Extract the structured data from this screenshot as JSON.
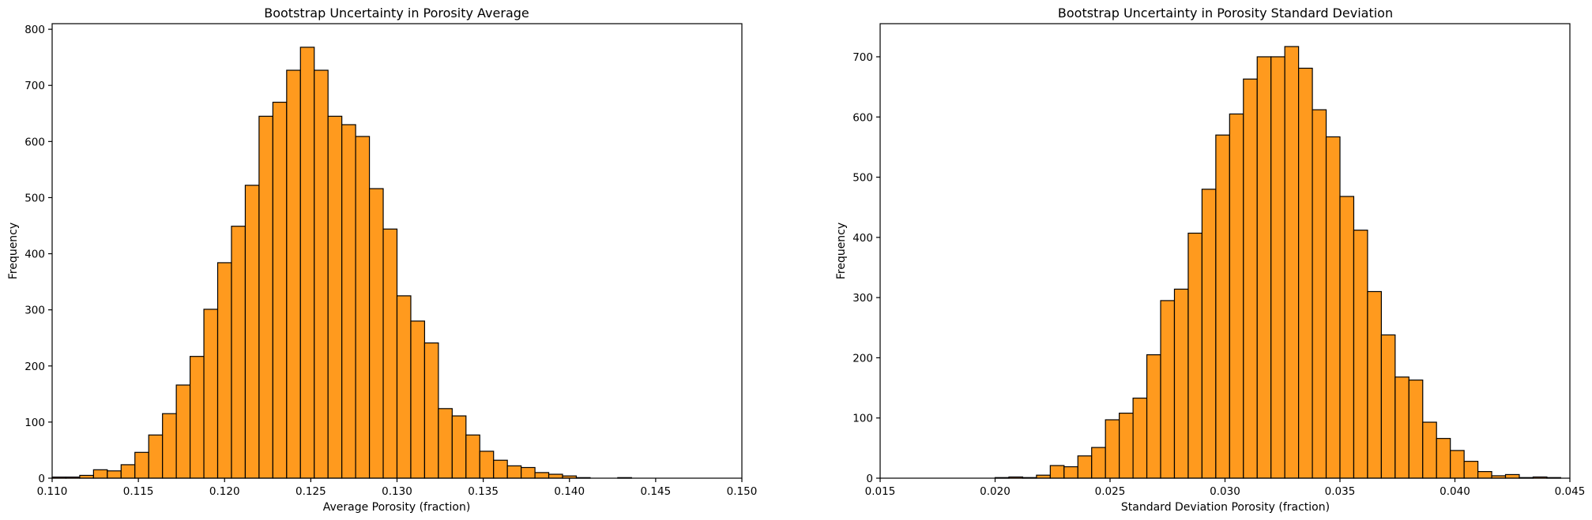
{
  "figure": {
    "background": "#ffffff"
  },
  "chart_data": [
    {
      "type": "bar",
      "histogram": true,
      "title": "Bootstrap Uncertainty in Porosity Average",
      "xlabel": "Average Porosity (fraction)",
      "ylabel": "Frequency",
      "xlim": [
        0.11,
        0.15
      ],
      "ylim": [
        0,
        810
      ],
      "x_ticks": [
        0.11,
        0.115,
        0.12,
        0.125,
        0.13,
        0.135,
        0.14,
        0.145,
        0.15
      ],
      "x_tick_labels": [
        "0.110",
        "0.115",
        "0.120",
        "0.125",
        "0.130",
        "0.135",
        "0.140",
        "0.145",
        "0.150"
      ],
      "y_ticks": [
        0,
        100,
        200,
        300,
        400,
        500,
        600,
        700,
        800
      ],
      "y_tick_labels": [
        "0",
        "100",
        "200",
        "300",
        "400",
        "500",
        "600",
        "700",
        "800"
      ],
      "bar_color": "#ff9a1e",
      "edge_color": "#000000",
      "bin_edges": [
        0.11,
        0.1108,
        0.1116,
        0.1124,
        0.1132,
        0.114,
        0.1148,
        0.1156,
        0.1164,
        0.1172,
        0.118,
        0.1188,
        0.1196,
        0.1204,
        0.1212,
        0.122,
        0.1228,
        0.1236,
        0.1244,
        0.1252,
        0.126,
        0.1268,
        0.1276,
        0.1284,
        0.1292,
        0.13,
        0.1308,
        0.1316,
        0.1324,
        0.1332,
        0.134,
        0.1348,
        0.1356,
        0.1364,
        0.1372,
        0.138,
        0.1388,
        0.1396,
        0.1404,
        0.1412
      ],
      "counts": [
        2,
        2,
        5,
        15,
        13,
        24,
        46,
        77,
        115,
        166,
        217,
        301,
        384,
        449,
        522,
        645,
        670,
        727,
        768,
        727,
        645,
        630,
        609,
        516,
        444,
        325,
        280,
        241,
        124,
        111,
        77,
        48,
        32,
        22,
        19,
        10,
        7,
        4,
        1
      ],
      "extra_bars": [
        {
          "x0": 0.1428,
          "x1": 0.1436,
          "count": 1
        }
      ],
      "grid": false,
      "legend": "none"
    },
    {
      "type": "bar",
      "histogram": true,
      "title": "Bootstrap Uncertainty in Porosity Standard Deviation",
      "xlabel": "Standard Deviation Porosity (fraction)",
      "ylabel": "Frequency",
      "xlim": [
        0.015,
        0.045
      ],
      "ylim": [
        0,
        755
      ],
      "x_ticks": [
        0.015,
        0.02,
        0.025,
        0.03,
        0.035,
        0.04,
        0.045
      ],
      "x_tick_labels": [
        "0.015",
        "0.020",
        "0.025",
        "0.030",
        "0.035",
        "0.040",
        "0.045"
      ],
      "y_ticks": [
        0,
        100,
        200,
        300,
        400,
        500,
        600,
        700
      ],
      "y_tick_labels": [
        "0",
        "100",
        "200",
        "300",
        "400",
        "500",
        "600",
        "700"
      ],
      "bar_color": "#ff9a1e",
      "edge_color": "#000000",
      "bin_edges": [
        0.02,
        0.0206,
        0.0212,
        0.0218,
        0.0224,
        0.023,
        0.0236,
        0.0242,
        0.0248,
        0.0254,
        0.026,
        0.0266,
        0.0272,
        0.0278,
        0.0284,
        0.029,
        0.0296,
        0.0302,
        0.0308,
        0.0314,
        0.032,
        0.0326,
        0.0332,
        0.0338,
        0.0344,
        0.035,
        0.0356,
        0.0362,
        0.0368,
        0.0374,
        0.038,
        0.0386,
        0.0392,
        0.0398,
        0.0404,
        0.041,
        0.0416,
        0.0422,
        0.0428,
        0.0434,
        0.044,
        0.0446
      ],
      "counts": [
        1,
        2,
        1,
        5,
        21,
        19,
        37,
        51,
        97,
        108,
        133,
        205,
        295,
        314,
        407,
        480,
        570,
        605,
        663,
        700,
        700,
        717,
        681,
        612,
        567,
        468,
        412,
        310,
        238,
        168,
        163,
        93,
        66,
        46,
        28,
        11,
        4,
        6,
        1,
        2,
        1
      ],
      "grid": false,
      "legend": "none"
    }
  ]
}
